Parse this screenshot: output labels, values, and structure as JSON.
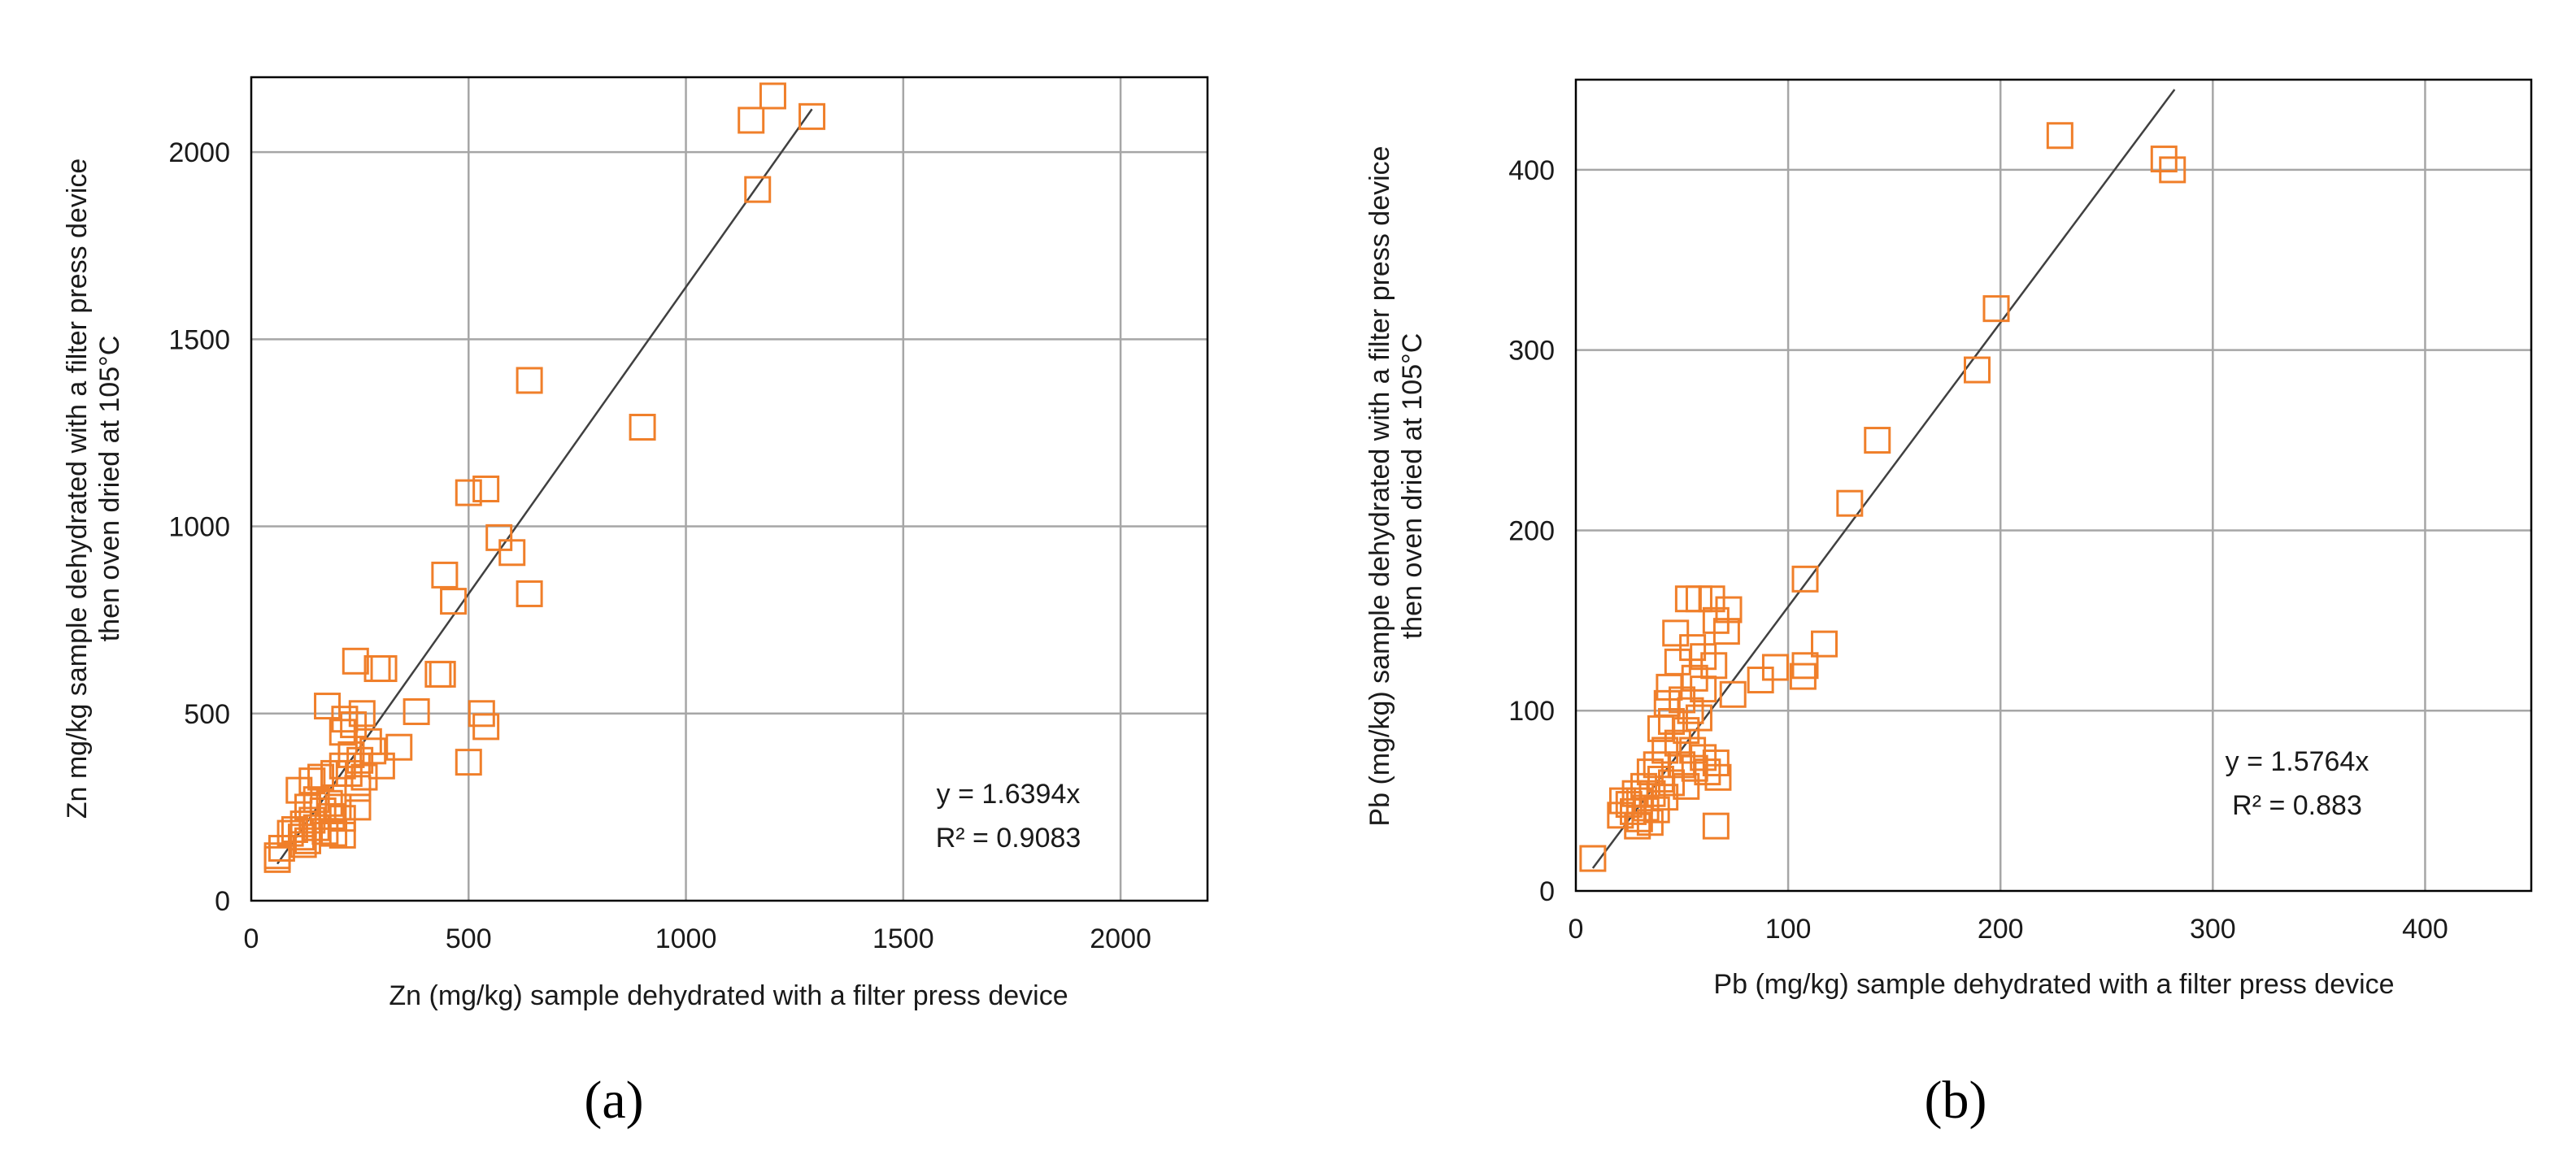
{
  "colors": {
    "marker": "#F07F2A",
    "fit_line": "#404040",
    "grid": "#A6A6A6"
  },
  "chart_data": [
    {
      "type": "scatter",
      "panel_label": "(a)",
      "xlabel": "Zn (mg/kg) sample  dehydrated with a  filter press device",
      "ylabel_lines": [
        "Zn mg/kg  sample  dehydrated with a  filter press device",
        "then oven dried at 105°C"
      ],
      "xlim": [
        0,
        2200
      ],
      "ylim": [
        0,
        2200
      ],
      "xticks": [
        0,
        500,
        1000,
        1500,
        2000
      ],
      "yticks": [
        0,
        500,
        1000,
        1500,
        2000
      ],
      "x_tick_labels": [
        "0",
        "500",
        "1000",
        "1500",
        "2000"
      ],
      "y_tick_labels": [
        "0",
        "500",
        "1000",
        "1500",
        "2000"
      ],
      "equation": "y = 1.6394x",
      "r_squared": "R² = 0.9083",
      "fit": {
        "slope": 1.6394,
        "x_start": 60,
        "x_end": 1290
      },
      "points": [
        [
          1150,
          2085
        ],
        [
          1200,
          2150
        ],
        [
          1290,
          2095
        ],
        [
          1165,
          1900
        ],
        [
          640,
          1390
        ],
        [
          900,
          1265
        ],
        [
          500,
          1090
        ],
        [
          540,
          1100
        ],
        [
          570,
          970
        ],
        [
          600,
          930
        ],
        [
          640,
          820
        ],
        [
          445,
          870
        ],
        [
          465,
          800
        ],
        [
          240,
          640
        ],
        [
          290,
          620
        ],
        [
          305,
          620
        ],
        [
          430,
          605
        ],
        [
          440,
          605
        ],
        [
          175,
          520
        ],
        [
          380,
          505
        ],
        [
          530,
          500
        ],
        [
          540,
          465
        ],
        [
          500,
          370
        ],
        [
          215,
          485
        ],
        [
          235,
          470
        ],
        [
          255,
          500
        ],
        [
          210,
          450
        ],
        [
          270,
          425
        ],
        [
          280,
          400
        ],
        [
          340,
          410
        ],
        [
          300,
          360
        ],
        [
          230,
          390
        ],
        [
          250,
          375
        ],
        [
          210,
          360
        ],
        [
          190,
          340
        ],
        [
          225,
          340
        ],
        [
          260,
          330
        ],
        [
          245,
          300
        ],
        [
          160,
          330
        ],
        [
          140,
          320
        ],
        [
          110,
          295
        ],
        [
          150,
          270
        ],
        [
          180,
          260
        ],
        [
          130,
          250
        ],
        [
          200,
          250
        ],
        [
          245,
          250
        ],
        [
          165,
          240
        ],
        [
          185,
          225
        ],
        [
          210,
          220
        ],
        [
          140,
          215
        ],
        [
          120,
          205
        ],
        [
          100,
          190
        ],
        [
          150,
          195
        ],
        [
          170,
          185
        ],
        [
          190,
          180
        ],
        [
          210,
          175
        ],
        [
          115,
          170
        ],
        [
          130,
          160
        ],
        [
          90,
          180
        ],
        [
          120,
          150
        ],
        [
          70,
          140
        ],
        [
          60,
          120
        ],
        [
          60,
          110
        ]
      ]
    },
    {
      "type": "scatter",
      "panel_label": "(b)",
      "xlabel": "Pb (mg/kg) sample  dehydrated with a  filter press device",
      "ylabel_lines": [
        "Pb (mg/kg)  sample  dehydrated with a  filter press device",
        "then oven dried at 105°C"
      ],
      "xlim": [
        0,
        450
      ],
      "ylim": [
        0,
        450
      ],
      "xticks": [
        0,
        100,
        200,
        300,
        400
      ],
      "yticks": [
        0,
        100,
        200,
        300,
        400
      ],
      "x_tick_labels": [
        "0",
        "100",
        "200",
        "300",
        "400"
      ],
      "y_tick_labels": [
        "0",
        "100",
        "200",
        "300",
        "400"
      ],
      "equation": "y = 1.5764x",
      "r_squared": "R² = 0.883",
      "fit": {
        "slope": 1.5764,
        "x_start": 8,
        "x_end": 282
      },
      "points": [
        [
          228,
          419
        ],
        [
          277,
          406
        ],
        [
          281,
          400
        ],
        [
          198,
          323
        ],
        [
          189,
          289
        ],
        [
          142,
          250
        ],
        [
          129,
          215
        ],
        [
          108,
          173
        ],
        [
          117,
          137
        ],
        [
          108,
          125
        ],
        [
          107,
          119
        ],
        [
          94,
          124
        ],
        [
          87,
          117
        ],
        [
          74,
          109
        ],
        [
          72,
          156
        ],
        [
          71,
          144
        ],
        [
          66,
          150
        ],
        [
          64,
          162
        ],
        [
          58,
          162
        ],
        [
          53,
          162
        ],
        [
          47,
          143
        ],
        [
          55,
          135
        ],
        [
          60,
          130
        ],
        [
          65,
          125
        ],
        [
          48,
          127
        ],
        [
          56,
          118
        ],
        [
          60,
          112
        ],
        [
          44,
          113
        ],
        [
          50,
          106
        ],
        [
          54,
          100
        ],
        [
          58,
          96
        ],
        [
          43,
          104
        ],
        [
          45,
          94
        ],
        [
          52,
          89
        ],
        [
          40,
          90
        ],
        [
          48,
          82
        ],
        [
          55,
          78
        ],
        [
          60,
          74
        ],
        [
          66,
          71
        ],
        [
          42,
          78
        ],
        [
          38,
          70
        ],
        [
          50,
          70
        ],
        [
          56,
          68
        ],
        [
          62,
          66
        ],
        [
          67,
          63
        ],
        [
          35,
          66
        ],
        [
          40,
          62
        ],
        [
          45,
          60
        ],
        [
          52,
          58
        ],
        [
          32,
          58
        ],
        [
          36,
          54
        ],
        [
          42,
          52
        ],
        [
          28,
          54
        ],
        [
          30,
          50
        ],
        [
          25,
          48
        ],
        [
          22,
          50
        ],
        [
          33,
          46
        ],
        [
          27,
          44
        ],
        [
          21,
          42
        ],
        [
          38,
          45
        ],
        [
          30,
          40
        ],
        [
          35,
          38
        ],
        [
          29,
          36
        ],
        [
          66,
          36
        ],
        [
          8,
          18
        ]
      ]
    }
  ]
}
